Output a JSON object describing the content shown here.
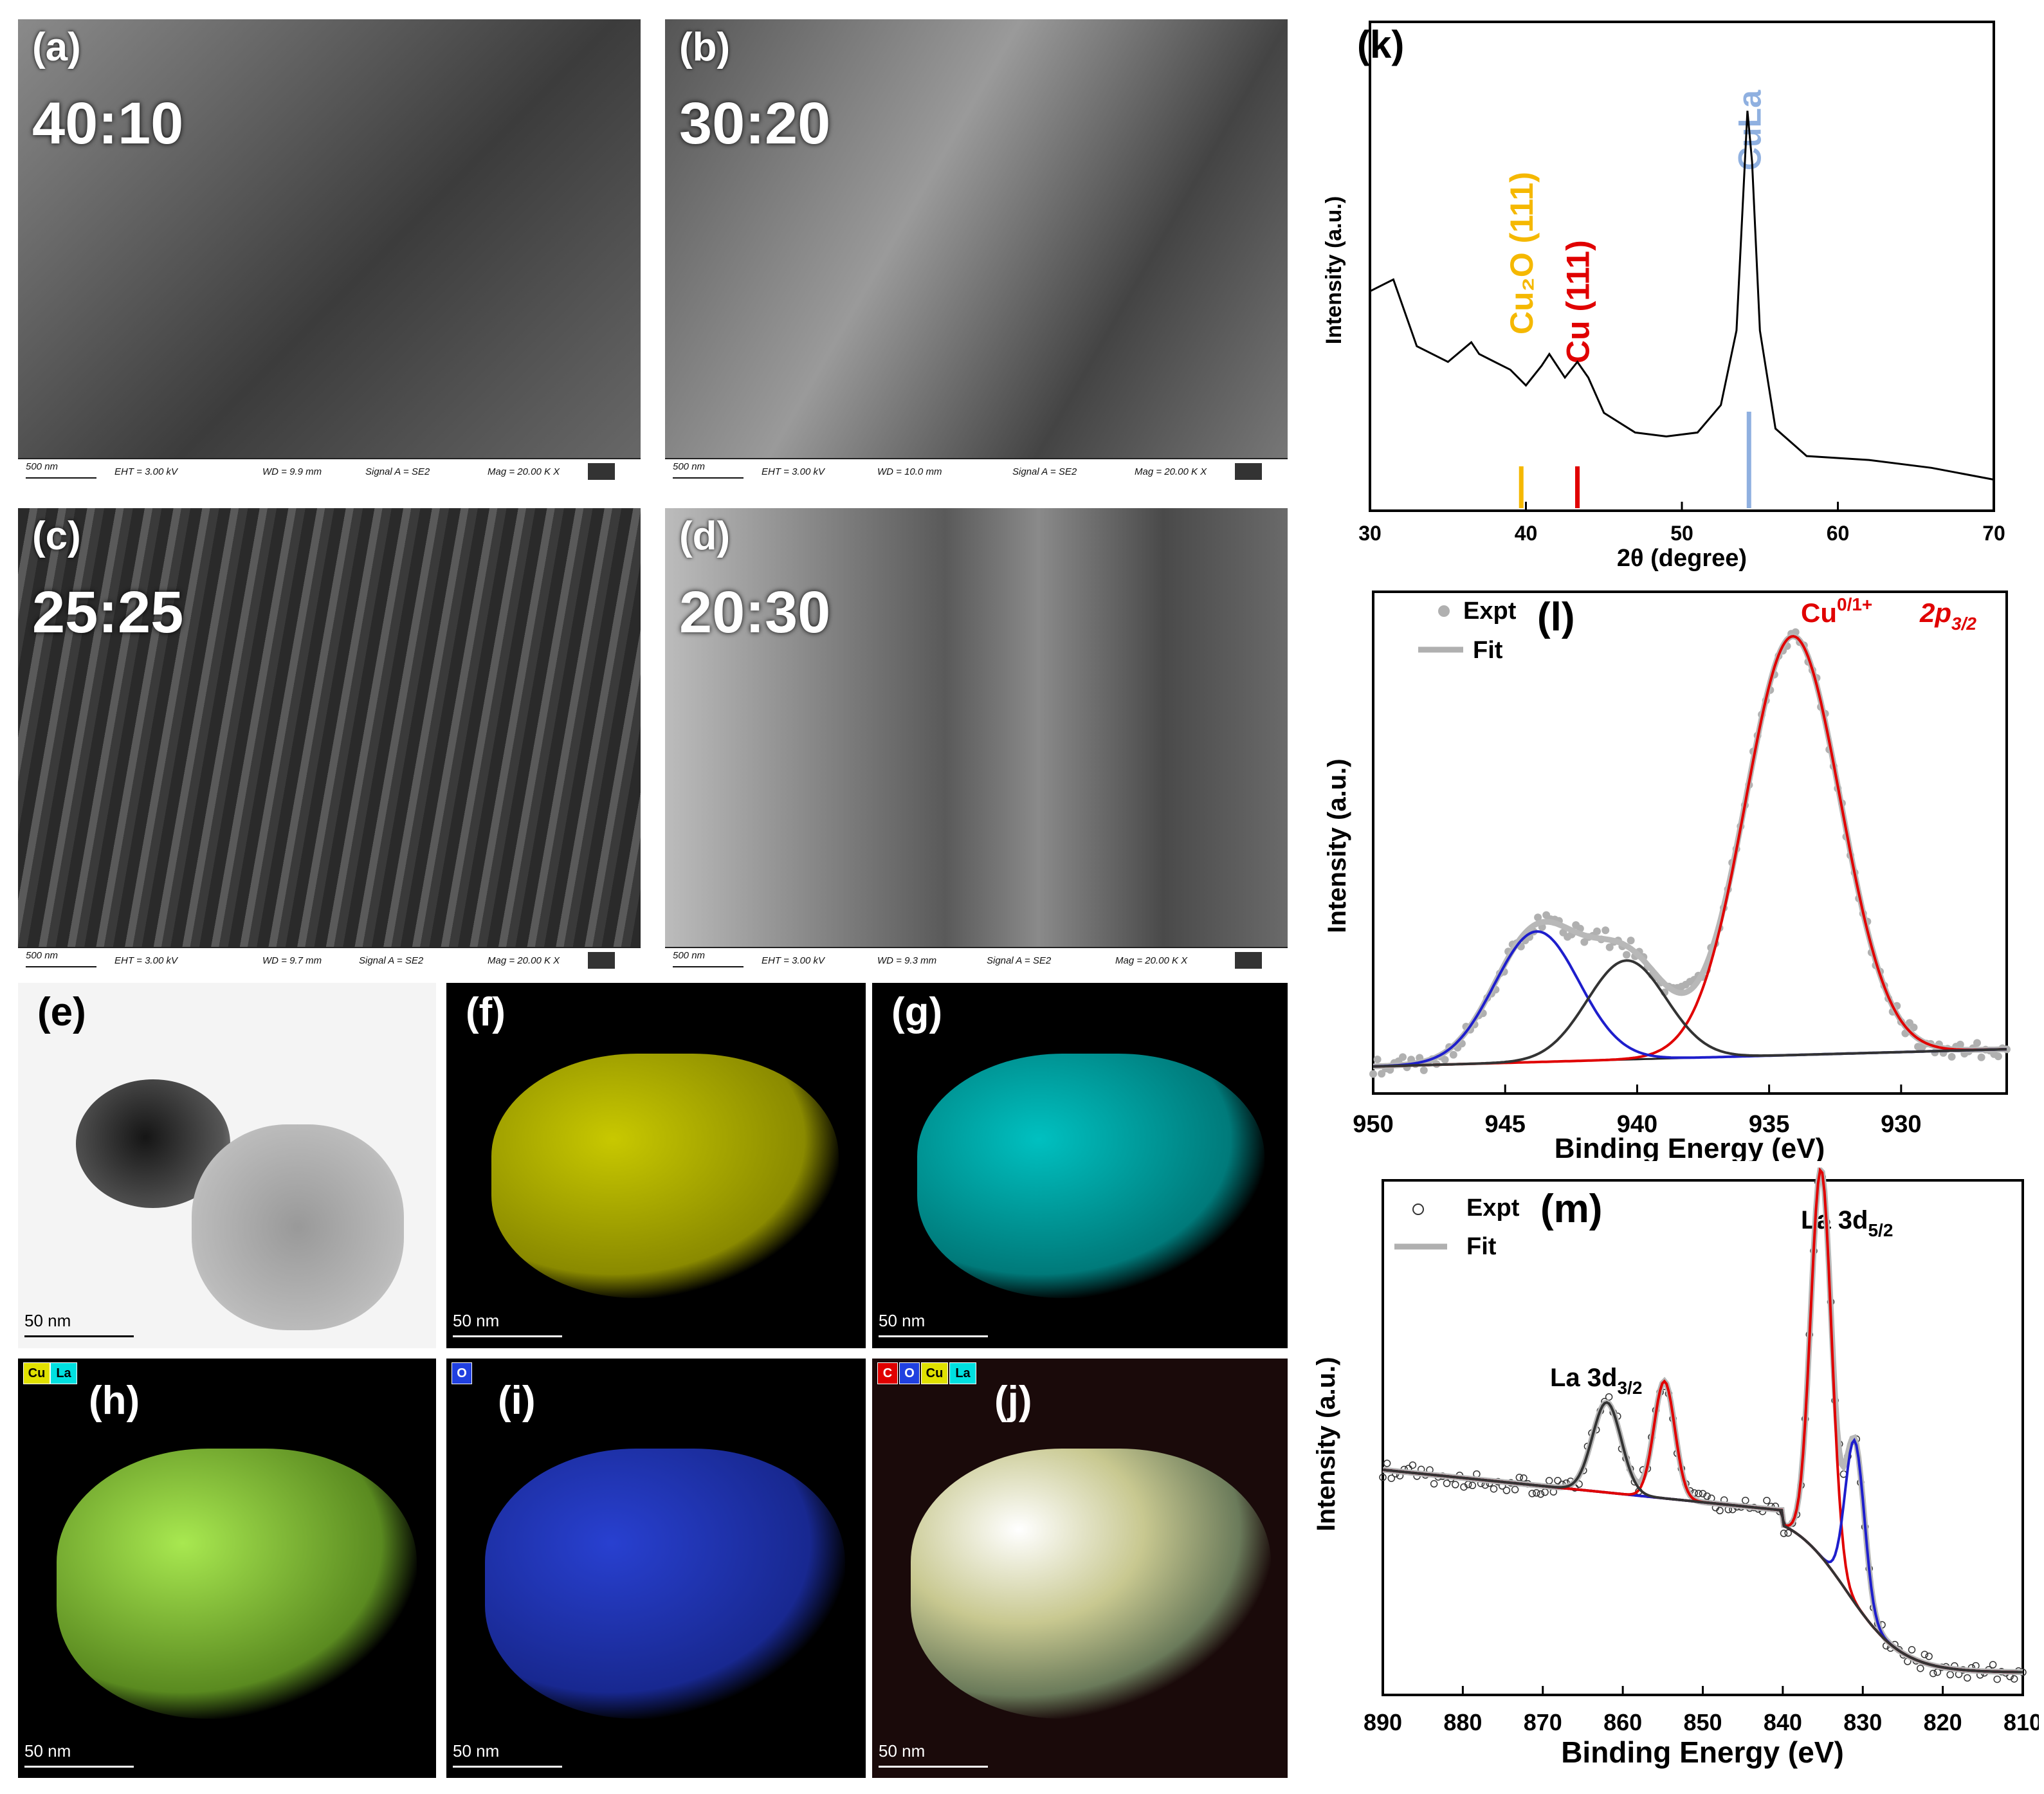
{
  "sem_panels": [
    {
      "label": "(a)",
      "ratio": "40:10",
      "eht": "EHT = 3.00 kV",
      "wd": "WD = 9.9 mm",
      "signal": "Signal A = SE2",
      "mag": "Mag = 20.00 K X",
      "scale": "500 nm"
    },
    {
      "label": "(b)",
      "ratio": "30:20",
      "eht": "EHT = 3.00 kV",
      "wd": "WD = 10.0 mm",
      "signal": "Signal A = SE2",
      "mag": "Mag = 20.00 K X",
      "scale": "500 nm"
    },
    {
      "label": "(c)",
      "ratio": "25:25",
      "eht": "EHT = 3.00 kV",
      "wd": "WD = 9.7 mm",
      "signal": "Signal A = SE2",
      "mag": "Mag = 20.00 K X",
      "scale": "500 nm"
    },
    {
      "label": "(d)",
      "ratio": "20:30",
      "eht": "EHT = 3.00 kV",
      "wd": "WD = 9.3 mm",
      "signal": "Signal A = SE2",
      "mag": "Mag = 20.00 K X",
      "scale": "500 nm"
    }
  ],
  "map_panels": [
    {
      "label": "(e)",
      "scale": "50 nm",
      "color": "#202020"
    },
    {
      "label": "(f)",
      "scale": "50 nm",
      "color": "#e0e000"
    },
    {
      "label": "(g)",
      "scale": "50 nm",
      "color": "#00e0e0"
    },
    {
      "label": "(h)",
      "scale": "50 nm",
      "chips": [
        "Cu",
        "La"
      ],
      "color": "#9be64a"
    },
    {
      "label": "(i)",
      "scale": "50 nm",
      "chips": [
        "O"
      ],
      "color": "#2040e0"
    },
    {
      "label": "(j)",
      "scale": "50 nm",
      "chips": [
        "C",
        "O",
        "Cu",
        "La"
      ],
      "color": "#f0f0d0"
    }
  ],
  "chart_data": [
    {
      "panel": "(k)",
      "type": "line",
      "xlabel": "2θ (degree)",
      "ylabel": "Intensity (a.u.)",
      "xlim": [
        30,
        70
      ],
      "xticks": [
        "30",
        "40",
        "50",
        "60",
        "70"
      ],
      "annotations": [
        {
          "text": "Cu₂O (111)",
          "x": 39.7,
          "color": "#f5b800"
        },
        {
          "text": "Cu (111)",
          "x": 43.3,
          "color": "#e00000"
        },
        {
          "text": "CuLa",
          "x": 54.3,
          "color": "#8fb0e0"
        }
      ],
      "series": [
        {
          "x": [
            30,
            31.5,
            33,
            35,
            36.5,
            37,
            38,
            39,
            40,
            41,
            41.5,
            42.5,
            43.3,
            44,
            45,
            47,
            49,
            51,
            52.5,
            53.5,
            54.2,
            54.5,
            55,
            56,
            58,
            62,
            66,
            70
          ],
          "values": [
            0.52,
            0.55,
            0.38,
            0.34,
            0.39,
            0.36,
            0.34,
            0.32,
            0.28,
            0.33,
            0.36,
            0.3,
            0.34,
            0.3,
            0.21,
            0.16,
            0.15,
            0.16,
            0.23,
            0.42,
            0.98,
            0.85,
            0.42,
            0.17,
            0.1,
            0.09,
            0.07,
            0.04
          ]
        }
      ]
    },
    {
      "panel": "(l)",
      "type": "line",
      "xlabel": "Binding Energy (eV)",
      "ylabel": "Intensity (a.u.)",
      "xlim": [
        950,
        926
      ],
      "xticks": [
        "950",
        "945",
        "940",
        "935",
        "930"
      ],
      "legend": [
        "Expt",
        "Fit"
      ],
      "peak_label": "Cu",
      "peak_sup": "0/1+",
      "orbital": "2p",
      "orbital_sub": "3/2",
      "peaks": [
        {
          "center": 934.1,
          "height": 0.93,
          "width": 1.8,
          "color": "#e00000"
        },
        {
          "center": 943.8,
          "height": 0.29,
          "width": 1.6,
          "color": "#1e1ecc"
        },
        {
          "center": 940.4,
          "height": 0.22,
          "width": 1.5,
          "color": "#333333"
        }
      ]
    },
    {
      "panel": "(m)",
      "type": "line",
      "xlabel": "Binding Energy (eV)",
      "ylabel": "Intensity (a.u.)",
      "xlim": [
        890,
        810
      ],
      "xticks": [
        "890",
        "880",
        "870",
        "860",
        "850",
        "840",
        "830",
        "820",
        "810"
      ],
      "legend": [
        "Expt",
        "Fit"
      ],
      "annotations": [
        {
          "text": "La 3d",
          "sub": "5/2"
        },
        {
          "text": "La 3d",
          "sub": "3/2"
        }
      ],
      "peaks": [
        {
          "center": 835.2,
          "height": 0.86,
          "width": 1.3,
          "color": "#e00000"
        },
        {
          "center": 831.0,
          "height": 0.36,
          "width": 1.2,
          "color": "#1e1ecc"
        },
        {
          "center": 854.8,
          "height": 0.26,
          "width": 1.3,
          "color": "#e00000"
        },
        {
          "center": 862.0,
          "height": 0.2,
          "width": 1.8,
          "color": "#333333"
        }
      ]
    }
  ]
}
